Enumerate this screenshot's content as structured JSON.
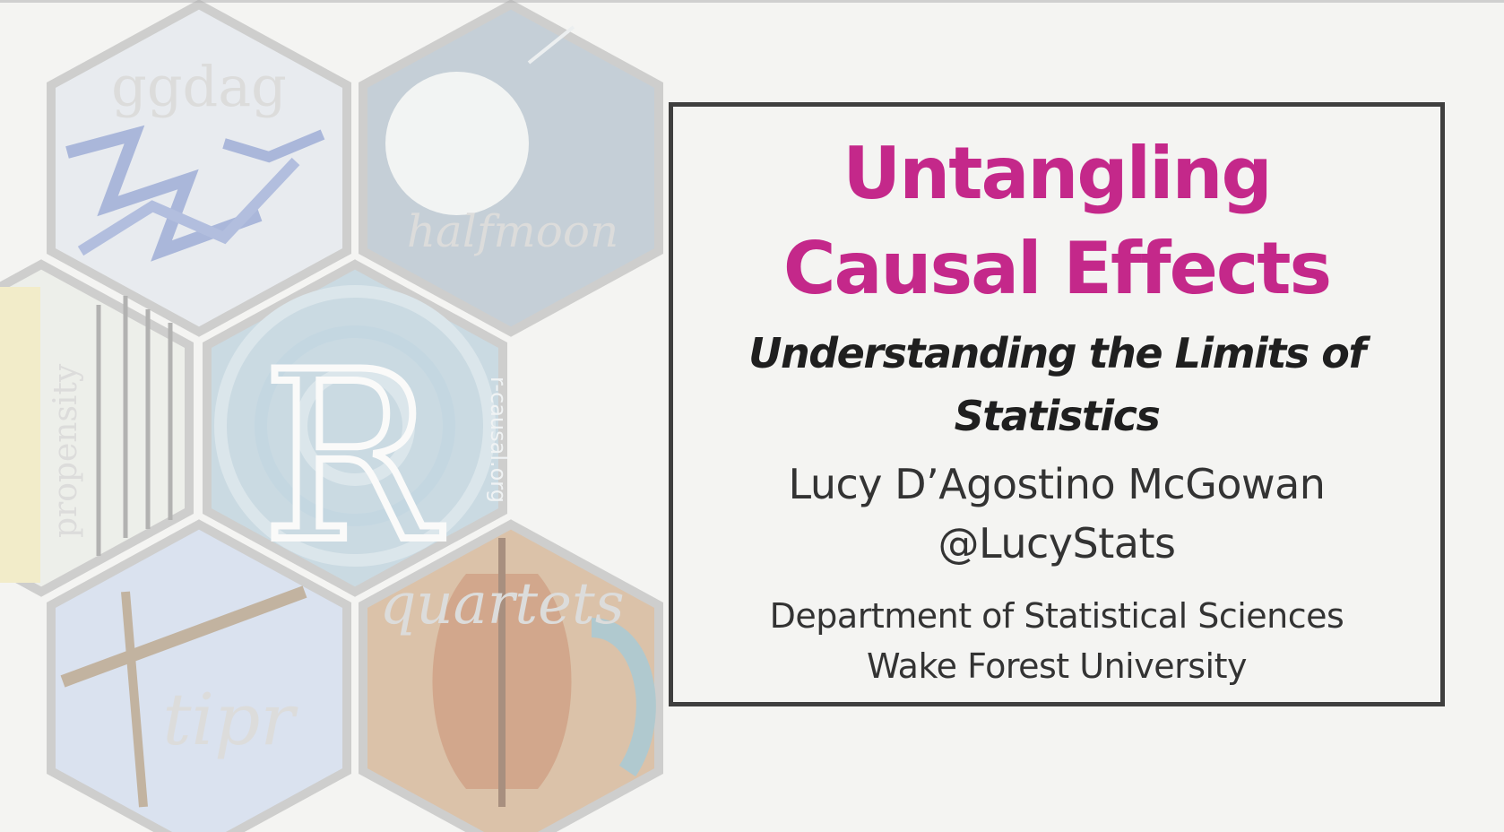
{
  "slide": {
    "title_line1": "Untangling",
    "title_line2": "Causal Effects",
    "subtitle_line1": "Understanding the Limits of",
    "subtitle_line2": "Statistics",
    "author": "Lucy D’Agostino McGowan",
    "handle": "@LucyStats",
    "department": "Department of Statistical Sciences",
    "university": "Wake Forest University"
  },
  "hex_stickers": {
    "ggdag": "ggdag",
    "halfmoon": "halfmoon",
    "propensity": "propensity",
    "r_causal": "R",
    "r_causal_url": "r-causal.org",
    "tipr": "tipr",
    "quartets": "quartets"
  },
  "colors": {
    "title": "#c4288a",
    "text": "#333333",
    "border": "#3f3f3f",
    "background": "#f4f4f2"
  }
}
